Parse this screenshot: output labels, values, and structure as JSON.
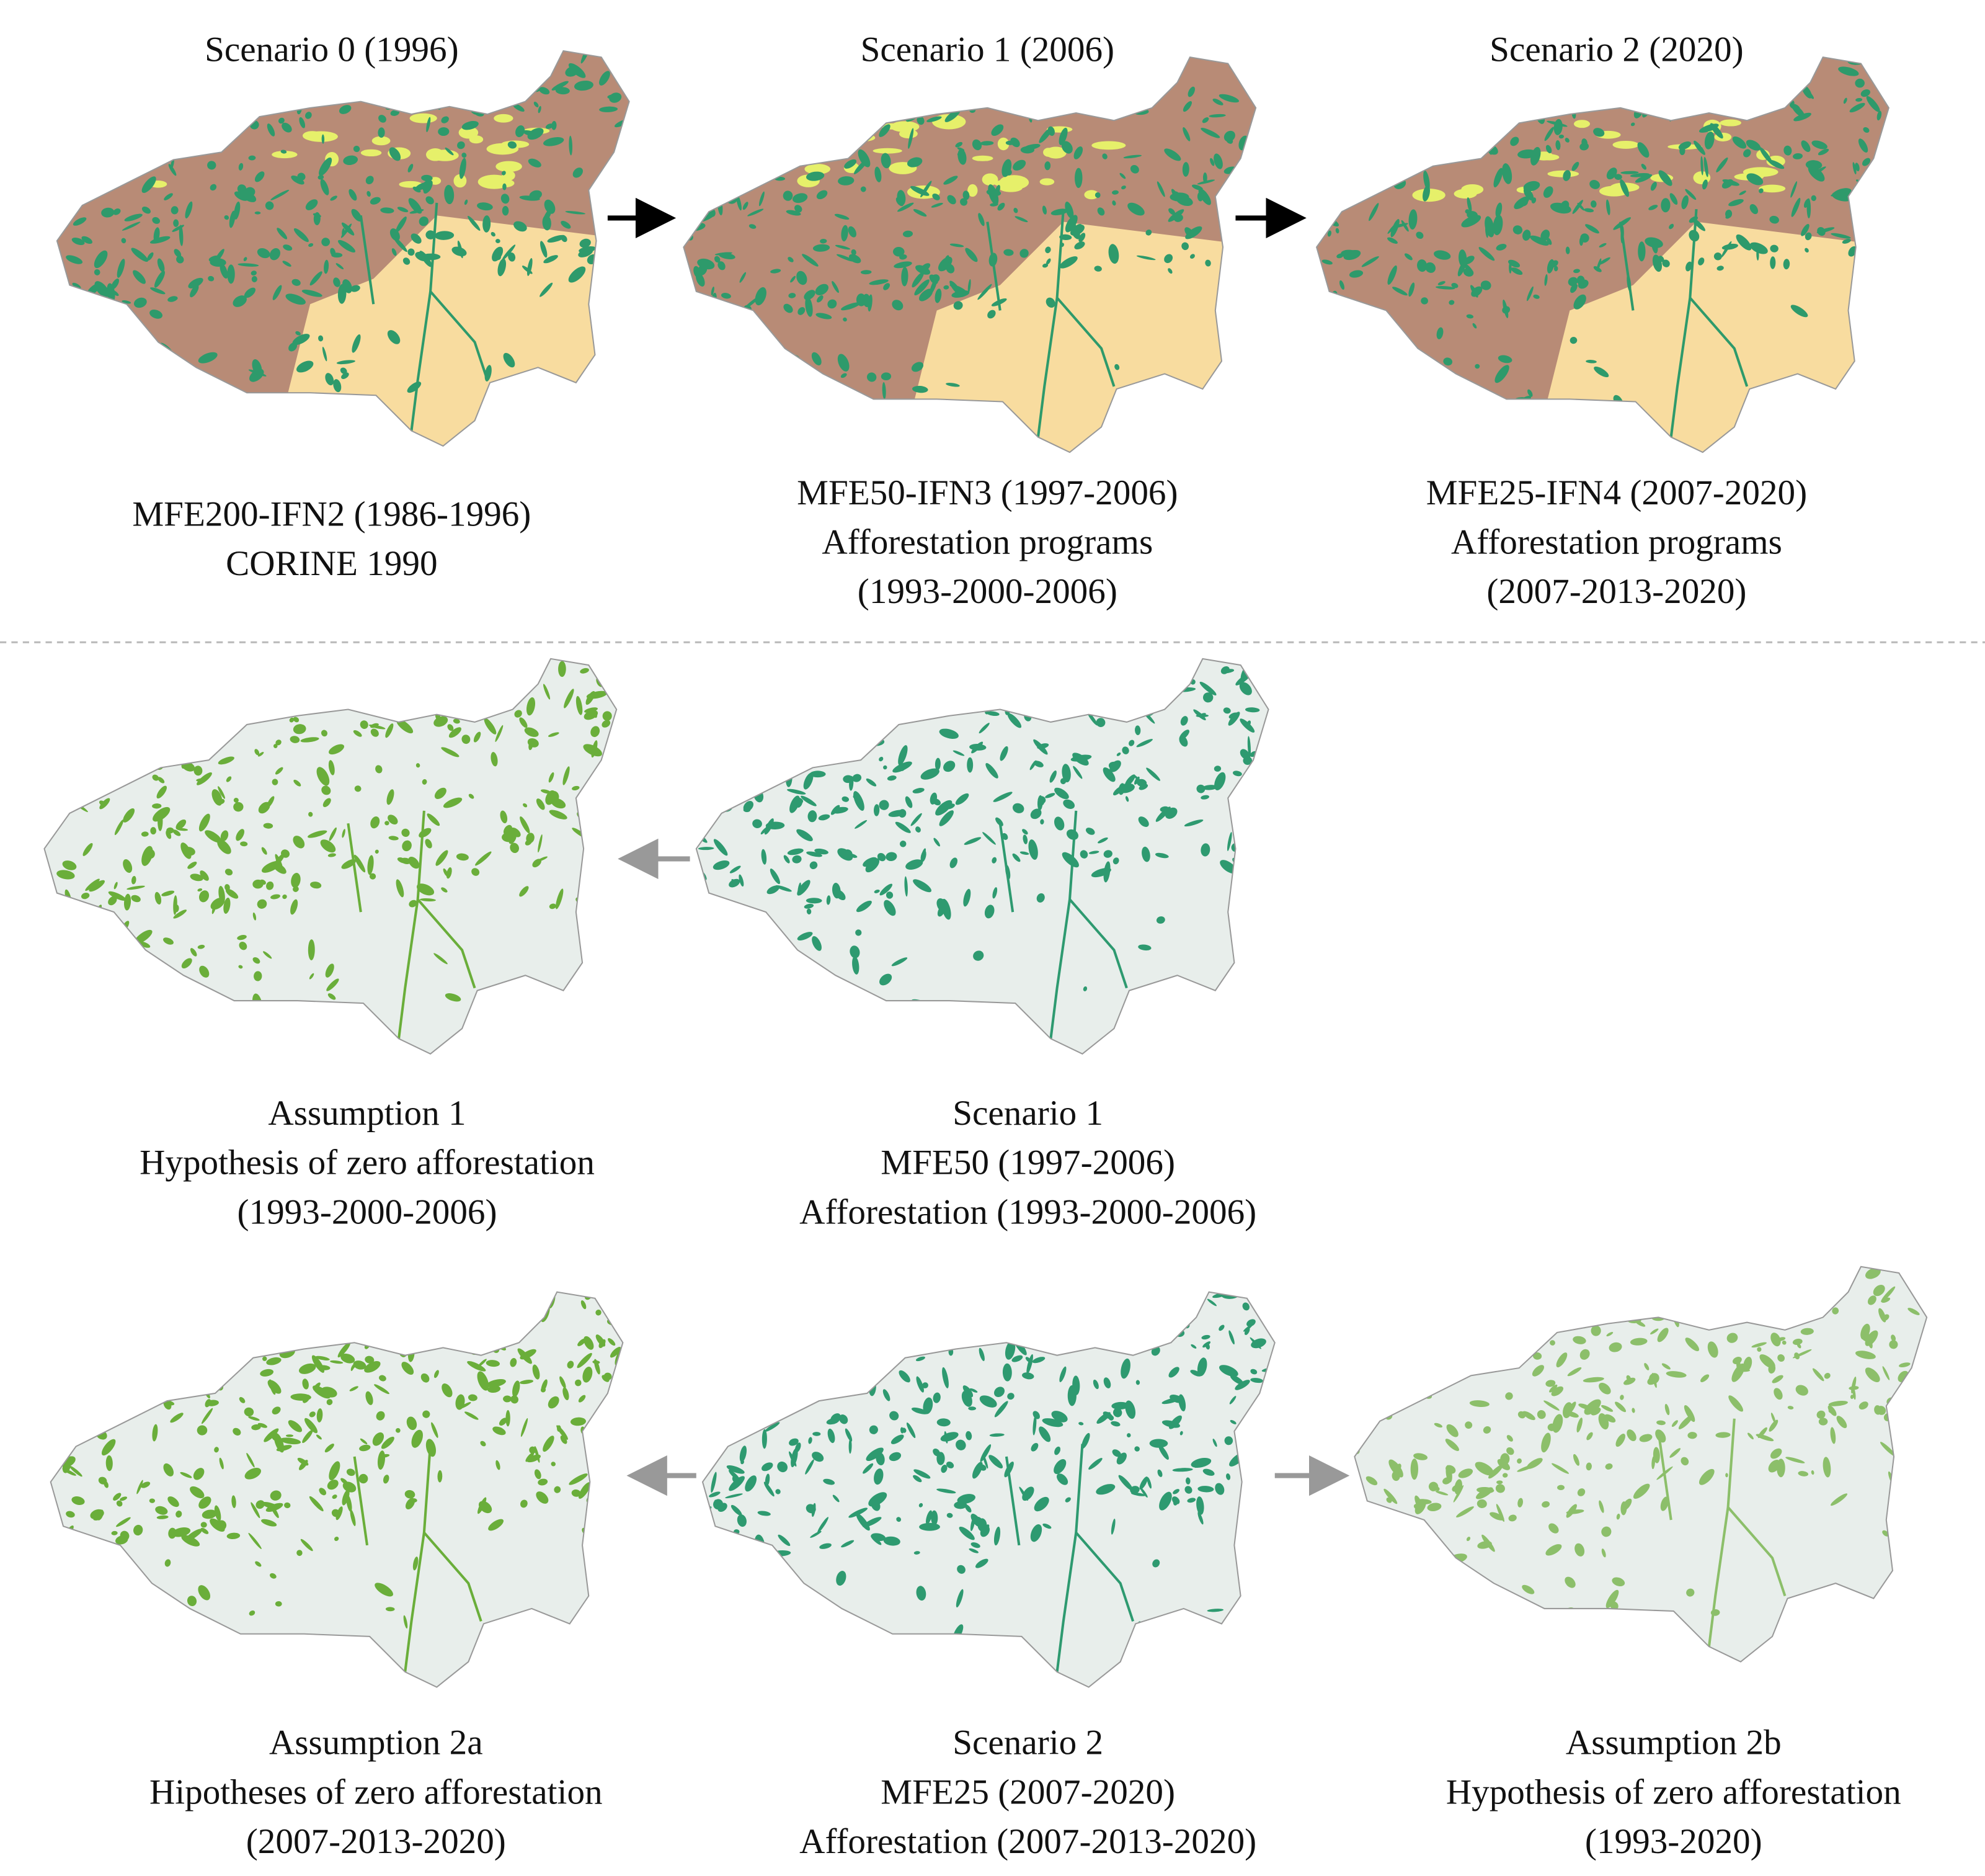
{
  "top_row": [
    {
      "title": "Scenario 0 (1996)",
      "caption": [
        "MFE200-IFN2 (1986-1996)",
        "CORINE 1990"
      ]
    },
    {
      "title": "Scenario 1 (2006)",
      "caption": [
        "MFE50-IFN3 (1997-2006)",
        "Afforestation programs",
        "(1993-2000-2006)"
      ]
    },
    {
      "title": "Scenario 2 (2020)",
      "caption": [
        "MFE25-IFN4 (2007-2020)",
        "Afforestation programs",
        "(2007-2013-2020)"
      ]
    }
  ],
  "middle_row": [
    {
      "caption": [
        "Assumption 1",
        "Hypothesis of zero afforestation",
        "(1993-2000-2006)"
      ]
    },
    {
      "caption": [
        "Scenario 1",
        "MFE50 (1997-2006)",
        "Afforestation (1993-2000-2006)"
      ]
    }
  ],
  "bottom_row": [
    {
      "caption": [
        "Assumption 2a",
        "Hipotheses of zero afforestation",
        "(2007-2013-2020)"
      ]
    },
    {
      "caption": [
        "Scenario 2",
        "MFE25 (2007-2020)",
        "Afforestation (2007-2013-2020)"
      ]
    },
    {
      "caption": [
        "Assumption 2b",
        "Hypothesis of zero afforestation",
        "(1993-2020)"
      ]
    }
  ]
}
